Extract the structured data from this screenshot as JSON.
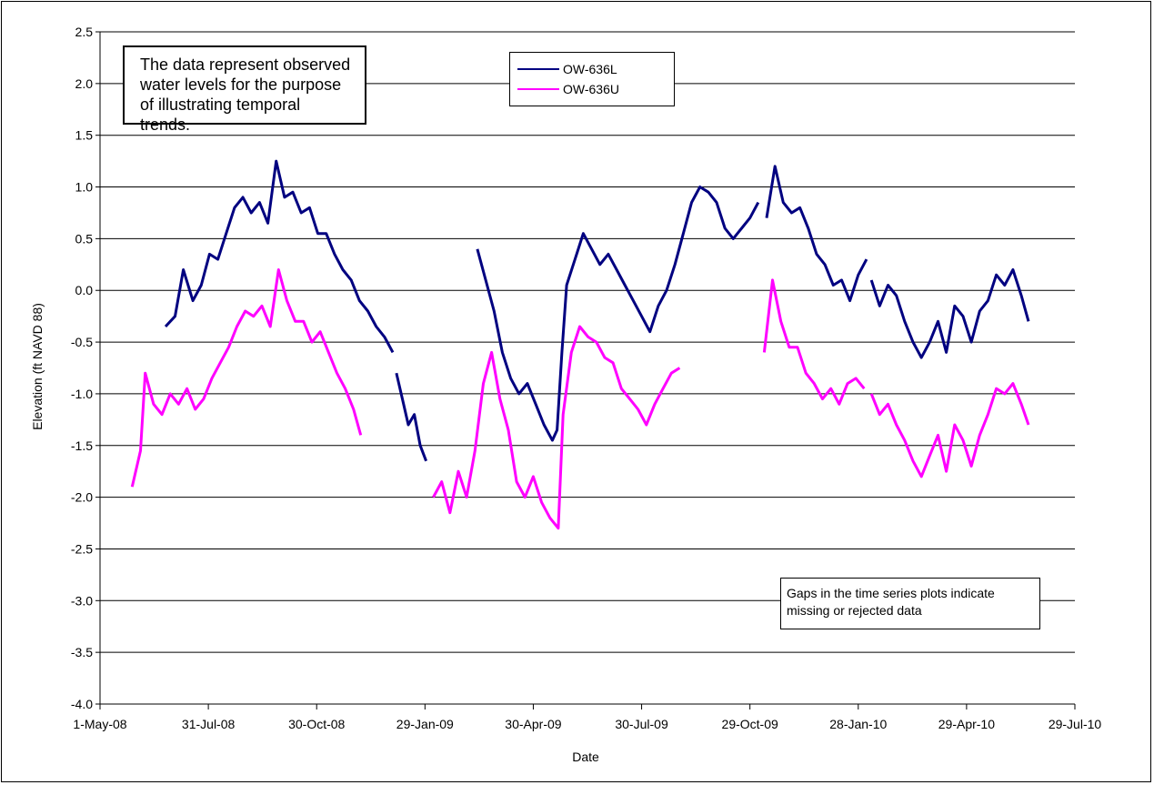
{
  "chart_data": {
    "type": "line",
    "xlabel": "Date",
    "ylabel": "Elevation (ft NAVD 88)",
    "ylim": [
      -4.0,
      2.5
    ],
    "grid": "horizontal",
    "legend_placement": "top-center",
    "x_ticks": [
      "1-May-08",
      "31-Jul-08",
      "30-Oct-08",
      "29-Jan-09",
      "30-Apr-09",
      "30-Jul-09",
      "29-Oct-09",
      "28-Jan-10",
      "29-Apr-10",
      "29-Jul-10"
    ],
    "y_ticks": [
      "2.5",
      "2.0",
      "1.5",
      "1.0",
      "0.5",
      "0.0",
      "-0.5",
      "-1.0",
      "-1.5",
      "-2.0",
      "-2.5",
      "-3.0",
      "-3.5",
      "-4.0"
    ],
    "series": [
      {
        "name": "OW-636L",
        "color": "#000080",
        "segments": [
          [
            [
              "2008-06-25",
              -0.35
            ],
            [
              "2008-07-03",
              -0.25
            ],
            [
              "2008-07-10",
              0.2
            ],
            [
              "2008-07-18",
              -0.1
            ],
            [
              "2008-07-25",
              0.05
            ],
            [
              "2008-08-01",
              0.35
            ],
            [
              "2008-08-08",
              0.3
            ],
            [
              "2008-08-15",
              0.55
            ],
            [
              "2008-08-22",
              0.8
            ],
            [
              "2008-08-29",
              0.9
            ],
            [
              "2008-09-05",
              0.75
            ],
            [
              "2008-09-12",
              0.85
            ],
            [
              "2008-09-19",
              0.65
            ],
            [
              "2008-09-26",
              1.25
            ],
            [
              "2008-10-03",
              0.9
            ],
            [
              "2008-10-10",
              0.95
            ],
            [
              "2008-10-17",
              0.75
            ],
            [
              "2008-10-24",
              0.8
            ],
            [
              "2008-10-31",
              0.55
            ],
            [
              "2008-11-07",
              0.55
            ],
            [
              "2008-11-14",
              0.35
            ],
            [
              "2008-11-21",
              0.2
            ],
            [
              "2008-11-28",
              0.1
            ],
            [
              "2008-12-05",
              -0.1
            ],
            [
              "2008-12-12",
              -0.2
            ],
            [
              "2008-12-19",
              -0.35
            ],
            [
              "2008-12-26",
              -0.45
            ],
            [
              "2009-01-02",
              -0.6
            ]
          ],
          [
            [
              "2009-01-05",
              -0.8
            ],
            [
              "2009-01-10",
              -1.05
            ],
            [
              "2009-01-15",
              -1.3
            ],
            [
              "2009-01-20",
              -1.2
            ],
            [
              "2009-01-25",
              -1.5
            ],
            [
              "2009-01-30",
              -1.65
            ]
          ],
          [
            [
              "2009-03-14",
              0.4
            ],
            [
              "2009-03-21",
              0.1
            ],
            [
              "2009-03-28",
              -0.2
            ],
            [
              "2009-04-04",
              -0.6
            ],
            [
              "2009-04-11",
              -0.85
            ],
            [
              "2009-04-18",
              -1.0
            ],
            [
              "2009-04-25",
              -0.9
            ],
            [
              "2009-05-02",
              -1.1
            ],
            [
              "2009-05-09",
              -1.3
            ],
            [
              "2009-05-16",
              -1.45
            ],
            [
              "2009-05-20",
              -1.35
            ],
            [
              "2009-05-24",
              -0.6
            ],
            [
              "2009-05-28",
              0.05
            ],
            [
              "2009-06-04",
              0.3
            ],
            [
              "2009-06-11",
              0.55
            ],
            [
              "2009-06-18",
              0.4
            ],
            [
              "2009-06-25",
              0.25
            ],
            [
              "2009-07-02",
              0.35
            ],
            [
              "2009-07-09",
              0.2
            ],
            [
              "2009-07-16",
              0.05
            ],
            [
              "2009-07-23",
              -0.1
            ],
            [
              "2009-07-30",
              -0.25
            ],
            [
              "2009-08-06",
              -0.4
            ],
            [
              "2009-08-13",
              -0.15
            ],
            [
              "2009-08-20",
              0.0
            ],
            [
              "2009-08-27",
              0.25
            ],
            [
              "2009-09-03",
              0.55
            ],
            [
              "2009-09-10",
              0.85
            ],
            [
              "2009-09-17",
              1.0
            ],
            [
              "2009-09-24",
              0.95
            ],
            [
              "2009-10-01",
              0.85
            ],
            [
              "2009-10-08",
              0.6
            ],
            [
              "2009-10-15",
              0.5
            ],
            [
              "2009-10-22",
              0.6
            ],
            [
              "2009-10-29",
              0.7
            ],
            [
              "2009-11-05",
              0.85
            ]
          ],
          [
            [
              "2009-11-12",
              0.7
            ],
            [
              "2009-11-19",
              1.2
            ],
            [
              "2009-11-26",
              0.85
            ],
            [
              "2009-12-03",
              0.75
            ],
            [
              "2009-12-10",
              0.8
            ],
            [
              "2009-12-17",
              0.6
            ],
            [
              "2009-12-24",
              0.35
            ],
            [
              "2009-12-31",
              0.25
            ],
            [
              "2010-01-07",
              0.05
            ],
            [
              "2010-01-14",
              0.1
            ],
            [
              "2010-01-21",
              -0.1
            ],
            [
              "2010-01-28",
              0.15
            ],
            [
              "2010-02-04",
              0.3
            ]
          ],
          [
            [
              "2010-02-08",
              0.1
            ],
            [
              "2010-02-15",
              -0.15
            ],
            [
              "2010-02-22",
              0.05
            ],
            [
              "2010-03-01",
              -0.05
            ],
            [
              "2010-03-08",
              -0.3
            ],
            [
              "2010-03-15",
              -0.5
            ],
            [
              "2010-03-22",
              -0.65
            ],
            [
              "2010-03-29",
              -0.5
            ],
            [
              "2010-04-05",
              -0.3
            ],
            [
              "2010-04-12",
              -0.6
            ],
            [
              "2010-04-19",
              -0.15
            ],
            [
              "2010-04-26",
              -0.25
            ],
            [
              "2010-05-03",
              -0.5
            ],
            [
              "2010-05-10",
              -0.2
            ],
            [
              "2010-05-17",
              -0.1
            ],
            [
              "2010-05-24",
              0.15
            ],
            [
              "2010-05-31",
              0.05
            ],
            [
              "2010-06-07",
              0.2
            ],
            [
              "2010-06-14",
              -0.05
            ],
            [
              "2010-06-20",
              -0.3
            ]
          ]
        ]
      },
      {
        "name": "OW-636U",
        "color": "#FF00FF",
        "segments": [
          [
            [
              "2008-05-28",
              -1.9
            ],
            [
              "2008-06-04",
              -1.55
            ],
            [
              "2008-06-08",
              -0.8
            ],
            [
              "2008-06-15",
              -1.1
            ],
            [
              "2008-06-22",
              -1.2
            ],
            [
              "2008-06-29",
              -1.0
            ],
            [
              "2008-07-06",
              -1.1
            ],
            [
              "2008-07-13",
              -0.95
            ],
            [
              "2008-07-20",
              -1.15
            ],
            [
              "2008-07-27",
              -1.05
            ],
            [
              "2008-08-03",
              -0.85
            ],
            [
              "2008-08-10",
              -0.7
            ],
            [
              "2008-08-17",
              -0.55
            ],
            [
              "2008-08-24",
              -0.35
            ],
            [
              "2008-08-31",
              -0.2
            ],
            [
              "2008-09-07",
              -0.25
            ],
            [
              "2008-09-14",
              -0.15
            ],
            [
              "2008-09-21",
              -0.35
            ],
            [
              "2008-09-28",
              0.2
            ],
            [
              "2008-10-05",
              -0.1
            ],
            [
              "2008-10-12",
              -0.3
            ],
            [
              "2008-10-19",
              -0.3
            ],
            [
              "2008-10-26",
              -0.5
            ],
            [
              "2008-11-02",
              -0.4
            ],
            [
              "2008-11-09",
              -0.6
            ],
            [
              "2008-11-16",
              -0.8
            ],
            [
              "2008-11-23",
              -0.95
            ],
            [
              "2008-11-30",
              -1.15
            ],
            [
              "2008-12-06",
              -1.4
            ]
          ],
          [
            [
              "2009-02-05",
              -2.0
            ],
            [
              "2009-02-12",
              -1.85
            ],
            [
              "2009-02-19",
              -2.15
            ],
            [
              "2009-02-26",
              -1.75
            ],
            [
              "2009-03-05",
              -2.0
            ],
            [
              "2009-03-12",
              -1.55
            ],
            [
              "2009-03-19",
              -0.9
            ],
            [
              "2009-03-26",
              -0.6
            ],
            [
              "2009-04-02",
              -1.05
            ],
            [
              "2009-04-09",
              -1.35
            ],
            [
              "2009-04-16",
              -1.85
            ],
            [
              "2009-04-23",
              -2.0
            ],
            [
              "2009-04-30",
              -1.8
            ],
            [
              "2009-05-07",
              -2.05
            ],
            [
              "2009-05-14",
              -2.2
            ],
            [
              "2009-05-21",
              -2.3
            ],
            [
              "2009-05-25",
              -1.2
            ],
            [
              "2009-06-01",
              -0.6
            ],
            [
              "2009-06-08",
              -0.35
            ],
            [
              "2009-06-15",
              -0.45
            ],
            [
              "2009-06-22",
              -0.5
            ],
            [
              "2009-06-29",
              -0.65
            ],
            [
              "2009-07-06",
              -0.7
            ],
            [
              "2009-07-13",
              -0.95
            ],
            [
              "2009-07-20",
              -1.05
            ],
            [
              "2009-07-27",
              -1.15
            ],
            [
              "2009-08-03",
              -1.3
            ],
            [
              "2009-08-10",
              -1.1
            ],
            [
              "2009-08-17",
              -0.95
            ],
            [
              "2009-08-24",
              -0.8
            ],
            [
              "2009-08-31",
              -0.75
            ]
          ],
          [
            [
              "2009-11-10",
              -0.6
            ],
            [
              "2009-11-17",
              0.1
            ],
            [
              "2009-11-24",
              -0.3
            ],
            [
              "2009-12-01",
              -0.55
            ],
            [
              "2009-12-08",
              -0.55
            ],
            [
              "2009-12-15",
              -0.8
            ],
            [
              "2009-12-22",
              -0.9
            ],
            [
              "2009-12-29",
              -1.05
            ],
            [
              "2010-01-05",
              -0.95
            ],
            [
              "2010-01-12",
              -1.1
            ],
            [
              "2010-01-19",
              -0.9
            ],
            [
              "2010-01-26",
              -0.85
            ],
            [
              "2010-02-02",
              -0.95
            ]
          ],
          [
            [
              "2010-02-08",
              -1.0
            ],
            [
              "2010-02-15",
              -1.2
            ],
            [
              "2010-02-22",
              -1.1
            ],
            [
              "2010-03-01",
              -1.3
            ],
            [
              "2010-03-08",
              -1.45
            ],
            [
              "2010-03-15",
              -1.65
            ],
            [
              "2010-03-22",
              -1.8
            ],
            [
              "2010-03-29",
              -1.6
            ],
            [
              "2010-04-05",
              -1.4
            ],
            [
              "2010-04-12",
              -1.75
            ],
            [
              "2010-04-19",
              -1.3
            ],
            [
              "2010-04-26",
              -1.45
            ],
            [
              "2010-05-03",
              -1.7
            ],
            [
              "2010-05-10",
              -1.4
            ],
            [
              "2010-05-17",
              -1.2
            ],
            [
              "2010-05-24",
              -0.95
            ],
            [
              "2010-05-31",
              -1.0
            ],
            [
              "2010-06-07",
              -0.9
            ],
            [
              "2010-06-14",
              -1.1
            ],
            [
              "2010-06-20",
              -1.3
            ]
          ]
        ]
      }
    ]
  },
  "notes": {
    "top_left": "The data represent observed water levels for the purpose of illustrating temporal trends.",
    "bottom_right": "Gaps in the time series plots indicate missing or rejected data"
  }
}
